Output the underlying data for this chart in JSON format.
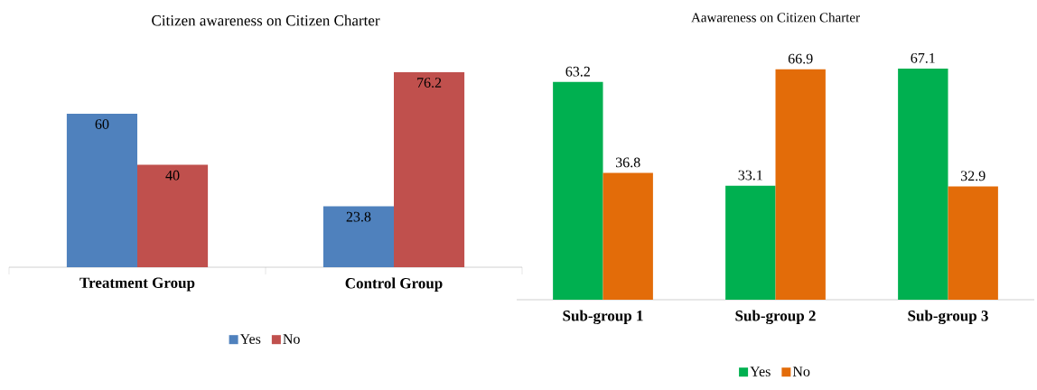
{
  "chart_data": [
    {
      "type": "bar",
      "title": "Citizen awareness on Citizen Charter",
      "categories": [
        "Treatment Group",
        "Control Group"
      ],
      "series": [
        {
          "name": "Yes",
          "color": "#4f81bd",
          "values": [
            60,
            23.8
          ]
        },
        {
          "name": "No",
          "color": "#c0504d",
          "values": [
            40,
            76.2
          ]
        }
      ],
      "data_labels": true,
      "legend": "bottom"
    },
    {
      "type": "bar",
      "title": "Aawareness on Citizen Charter",
      "categories": [
        "Sub-group 1",
        "Sub-group 2",
        "Sub-group 3"
      ],
      "series": [
        {
          "name": "Yes",
          "color": "#00b050",
          "values": [
            63.2,
            33.1,
            67.1
          ]
        },
        {
          "name": "No",
          "color": "#e36c09",
          "values": [
            36.8,
            66.9,
            32.9
          ]
        }
      ],
      "data_labels": true,
      "legend": "bottom"
    }
  ]
}
